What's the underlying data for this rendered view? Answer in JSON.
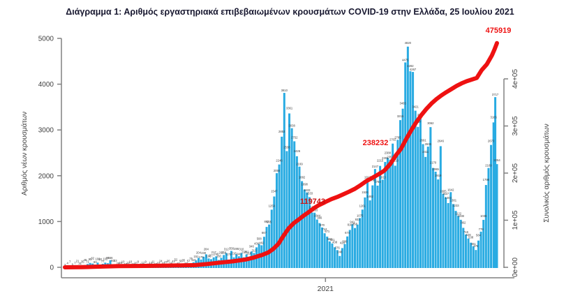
{
  "colors": {
    "bar": "#29ABE2",
    "line": "#EE1111",
    "annotation_end": "#EE1111",
    "annotation_mid": "#CC1010",
    "title": "#181830",
    "axis_line": "#808080",
    "axis_text": "#404040",
    "bar_label": "#3A3A3A"
  },
  "chart_data": {
    "type": "bar",
    "title": "Διάγραμμα 1: Αριθμός εργαστηριακά επιβεβαιωμένων κρουσμάτων COVID-19 στην Ελλάδα, 25 Ιουλίου 2021",
    "x_unit": "days since 2020-02-26 (positions estimated)",
    "x_range_days": [
      0,
      514
    ],
    "x_tick": {
      "label": "2021",
      "day": 310
    },
    "left_axis": {
      "label": "Αριθμός νέων κρουσμάτων",
      "ticks": [
        0,
        1000,
        2000,
        3000,
        4000,
        5000
      ],
      "range": [
        0,
        5000
      ]
    },
    "right_axis": {
      "label": "Συνολικός αριθμός κρουσμάτων",
      "ticks": [
        "0e+00",
        "1e+05",
        "2e+05",
        "3e+05",
        "4e+05"
      ],
      "tick_values": [
        0,
        100000,
        200000,
        300000,
        400000
      ],
      "range": [
        0,
        400000
      ]
    },
    "legend": "none",
    "grid": false,
    "series": [
      {
        "name": "daily-new-cases",
        "type": "bar",
        "axis": "left",
        "color": "#29ABE2",
        "points": [
          [
            0,
            3
          ],
          [
            3,
            4
          ],
          [
            6,
            7
          ],
          [
            9,
            9
          ],
          [
            12,
            7
          ],
          [
            15,
            21
          ],
          [
            18,
            31
          ],
          [
            21,
            35
          ],
          [
            24,
            48
          ],
          [
            27,
            71
          ],
          [
            30,
            95
          ],
          [
            33,
            82
          ],
          [
            36,
            60
          ],
          [
            39,
            102
          ],
          [
            42,
            60
          ],
          [
            45,
            77
          ],
          [
            48,
            102
          ],
          [
            51,
            89
          ],
          [
            54,
            156
          ],
          [
            57,
            60
          ],
          [
            60,
            33
          ],
          [
            63,
            28
          ],
          [
            66,
            16
          ],
          [
            69,
            10
          ],
          [
            72,
            15
          ],
          [
            75,
            12
          ],
          [
            78,
            10
          ],
          [
            81,
            18
          ],
          [
            84,
            10
          ],
          [
            87,
            8
          ],
          [
            90,
            6
          ],
          [
            93,
            12
          ],
          [
            96,
            9
          ],
          [
            99,
            10
          ],
          [
            102,
            14
          ],
          [
            105,
            11
          ],
          [
            108,
            19
          ],
          [
            111,
            10
          ],
          [
            114,
            24
          ],
          [
            117,
            31
          ],
          [
            120,
            27
          ],
          [
            123,
            20
          ],
          [
            126,
            29
          ],
          [
            129,
            43
          ],
          [
            132,
            52
          ],
          [
            135,
            31
          ],
          [
            138,
            50
          ],
          [
            141,
            35
          ],
          [
            144,
            27
          ],
          [
            147,
            57
          ],
          [
            150,
            75
          ],
          [
            153,
            110
          ],
          [
            156,
            151
          ],
          [
            159,
            204
          ],
          [
            162,
            170
          ],
          [
            165,
            230
          ],
          [
            168,
            284
          ],
          [
            171,
            193
          ],
          [
            174,
            177
          ],
          [
            177,
            217
          ],
          [
            180,
            240
          ],
          [
            183,
            160
          ],
          [
            186,
            207
          ],
          [
            189,
            268
          ],
          [
            192,
            312
          ],
          [
            195,
            170
          ],
          [
            198,
            358
          ],
          [
            201,
            218
          ],
          [
            204,
            286
          ],
          [
            207,
            240
          ],
          [
            210,
            310
          ],
          [
            213,
            218
          ],
          [
            216,
            282
          ],
          [
            219,
            218
          ],
          [
            222,
            346
          ],
          [
            225,
            313
          ],
          [
            228,
            436
          ],
          [
            231,
            508
          ],
          [
            234,
            482
          ],
          [
            237,
            667
          ],
          [
            240,
            882
          ],
          [
            243,
            935
          ],
          [
            246,
            1259
          ],
          [
            249,
            1547
          ],
          [
            252,
            2056
          ],
          [
            255,
            2246
          ],
          [
            258,
            2853
          ],
          [
            261,
            3810
          ],
          [
            264,
            2538
          ],
          [
            267,
            3361
          ],
          [
            270,
            3038
          ],
          [
            273,
            2752
          ],
          [
            276,
            2426
          ],
          [
            279,
            2199
          ],
          [
            282,
            1882
          ],
          [
            285,
            1698
          ],
          [
            288,
            1633
          ],
          [
            291,
            1533
          ],
          [
            294,
            1197
          ],
          [
            297,
            1193
          ],
          [
            300,
            1044
          ],
          [
            303,
            966
          ],
          [
            306,
            870
          ],
          [
            309,
            744
          ],
          [
            312,
            671
          ],
          [
            315,
            566
          ],
          [
            318,
            521
          ],
          [
            321,
            438
          ],
          [
            324,
            376
          ],
          [
            327,
            248
          ],
          [
            330,
            420
          ],
          [
            333,
            508
          ],
          [
            336,
            674
          ],
          [
            339,
            816
          ],
          [
            342,
            941
          ],
          [
            345,
            858
          ],
          [
            348,
            933
          ],
          [
            351,
            1075
          ],
          [
            354,
            1261
          ],
          [
            357,
            1526
          ],
          [
            360,
            1913
          ],
          [
            363,
            1462
          ],
          [
            366,
            1790
          ],
          [
            369,
            2147
          ],
          [
            372,
            1784
          ],
          [
            375,
            2215
          ],
          [
            378,
            1913
          ],
          [
            381,
            2301
          ],
          [
            384,
            2388
          ],
          [
            387,
            2353
          ],
          [
            390,
            2702
          ],
          [
            393,
            2219
          ],
          [
            396,
            2785
          ],
          [
            399,
            3215
          ],
          [
            402,
            3465
          ],
          [
            405,
            4475
          ],
          [
            408,
            4820
          ],
          [
            411,
            4282
          ],
          [
            414,
            4267
          ],
          [
            417,
            3421
          ],
          [
            420,
            3067
          ],
          [
            423,
            3278
          ],
          [
            426,
            2691
          ],
          [
            429,
            2411
          ],
          [
            432,
            2636
          ],
          [
            435,
            3062
          ],
          [
            438,
            2170
          ],
          [
            441,
            2089
          ],
          [
            444,
            1919
          ],
          [
            447,
            2646
          ],
          [
            450,
            1605
          ],
          [
            453,
            1527
          ],
          [
            456,
            1403
          ],
          [
            459,
            1642
          ],
          [
            462,
            1381
          ],
          [
            465,
            1233
          ],
          [
            468,
            1122
          ],
          [
            471,
            1038
          ],
          [
            474,
            862
          ],
          [
            477,
            716
          ],
          [
            480,
            628
          ],
          [
            483,
            538
          ],
          [
            486,
            461
          ],
          [
            489,
            378
          ],
          [
            492,
            584
          ],
          [
            495,
            779
          ],
          [
            498,
            1036
          ],
          [
            501,
            1798
          ],
          [
            504,
            2169
          ],
          [
            507,
            2673
          ],
          [
            510,
            3165
          ],
          [
            512,
            3717
          ],
          [
            514,
            2254
          ]
        ]
      },
      {
        "name": "cumulative-cases",
        "type": "line",
        "axis": "right",
        "color": "#EE1111",
        "points": [
          [
            0,
            3
          ],
          [
            20,
            418
          ],
          [
            34,
            1061
          ],
          [
            48,
            1832
          ],
          [
            64,
            2591
          ],
          [
            80,
            2853
          ],
          [
            95,
            2997
          ],
          [
            110,
            3302
          ],
          [
            125,
            3732
          ],
          [
            140,
            4110
          ],
          [
            155,
            4662
          ],
          [
            170,
            7075
          ],
          [
            185,
            10134
          ],
          [
            200,
            12734
          ],
          [
            215,
            16627
          ],
          [
            225,
            20947
          ],
          [
            235,
            26469
          ],
          [
            242,
            31496
          ],
          [
            248,
            39251
          ],
          [
            254,
            49807
          ],
          [
            260,
            66637
          ],
          [
            266,
            82034
          ],
          [
            272,
            93323
          ],
          [
            278,
            101287
          ],
          [
            284,
            109655
          ],
          [
            288,
            114568
          ],
          [
            292,
            119743
          ],
          [
            297,
            126372
          ],
          [
            302,
            131856
          ],
          [
            307,
            135931
          ],
          [
            310,
            138850
          ],
          [
            317,
            144738
          ],
          [
            324,
            149368
          ],
          [
            331,
            154796
          ],
          [
            338,
            160496
          ],
          [
            345,
            166696
          ],
          [
            352,
            174659
          ],
          [
            359,
            183336
          ],
          [
            366,
            190235
          ],
          [
            373,
            197279
          ],
          [
            380,
            205120
          ],
          [
            387,
            219247
          ],
          [
            394,
            238232
          ],
          [
            400,
            252000
          ],
          [
            406,
            272000
          ],
          [
            412,
            291000
          ],
          [
            418,
            308000
          ],
          [
            424,
            323000
          ],
          [
            430,
            336000
          ],
          [
            436,
            347500
          ],
          [
            442,
            357000
          ],
          [
            448,
            365000
          ],
          [
            454,
            372000
          ],
          [
            460,
            378500
          ],
          [
            466,
            385000
          ],
          [
            472,
            390500
          ],
          [
            478,
            395000
          ],
          [
            484,
            398500
          ],
          [
            490,
            402000
          ],
          [
            496,
            419000
          ],
          [
            502,
            431000
          ],
          [
            508,
            450000
          ],
          [
            511,
            462000
          ],
          [
            514,
            475919
          ]
        ]
      }
    ],
    "annotations": [
      {
        "text": "119743",
        "px": [
          448,
          292
        ],
        "layer": "above-line",
        "color": "#CC1010"
      },
      {
        "text": "238232",
        "px": [
          538,
          208
        ],
        "layer": "below-line",
        "color": "#EE1111"
      },
      {
        "text": "475919",
        "px": [
          714,
          47
        ],
        "layer": "above-line",
        "color": "#EE1111"
      }
    ]
  }
}
